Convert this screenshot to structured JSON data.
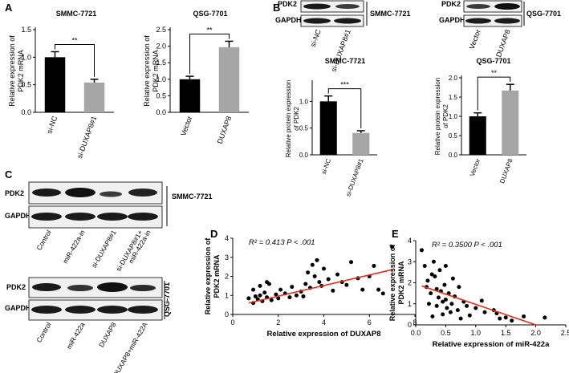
{
  "panels": {
    "A": "A",
    "B": "B",
    "C": "C",
    "D": "D",
    "E": "E"
  },
  "colors": {
    "dark_bar": "#000000",
    "light_bar": "#a6a6a6",
    "regression": "#e0301e",
    "blot_band": "#1a1a1a"
  },
  "chart_data": [
    {
      "id": "A1",
      "type": "bar",
      "title": "SMMC-7721",
      "ylabel": [
        "Relative expression of",
        "PDK2 mRNA"
      ],
      "categories": [
        "si-NC",
        "si-DUXAP8#1"
      ],
      "values": [
        1.0,
        0.54
      ],
      "errors": [
        0.1,
        0.06
      ],
      "ylim": [
        0,
        1.5
      ],
      "yticks": [
        "0.0",
        "0.5",
        "1.0",
        "1.5"
      ],
      "significance": "**"
    },
    {
      "id": "A2",
      "type": "bar",
      "title": "QSG-7701",
      "ylabel": [
        "Relative expression of",
        "PDK2 mRNA"
      ],
      "categories": [
        "Vector",
        "DUXAP8"
      ],
      "values": [
        1.0,
        1.97
      ],
      "errors": [
        0.09,
        0.18
      ],
      "ylim": [
        0,
        2.5
      ],
      "yticks": [
        "0.0",
        "0.5",
        "1.0",
        "1.5",
        "2.0",
        "2.5"
      ],
      "significance": "**"
    },
    {
      "id": "B1",
      "type": "bar",
      "title": "SMMC-7721",
      "ylabel": [
        "Relative protein expression",
        "of PDK2"
      ],
      "categories": [
        "si-NC",
        "si-DUXAP8#1"
      ],
      "values": [
        1.0,
        0.41
      ],
      "errors": [
        0.1,
        0.04
      ],
      "ylim": [
        0,
        1.35
      ],
      "yticks": [
        "0.0",
        "0.5",
        "1.0"
      ],
      "significance": "***"
    },
    {
      "id": "B2",
      "type": "bar",
      "title": "QSG-7701",
      "ylabel": [
        "Relative protein expression",
        "of PDK2"
      ],
      "categories": [
        "Vector",
        "DUXAP8"
      ],
      "values": [
        1.0,
        1.67
      ],
      "errors": [
        0.09,
        0.16
      ],
      "ylim": [
        0,
        2.0
      ],
      "yticks": [
        "0.0",
        "0.5",
        "1.0",
        "1.5",
        "2.0"
      ],
      "significance": "**"
    },
    {
      "id": "D",
      "type": "scatter",
      "ylabel": [
        "Relative expression of",
        "PDK2 mRNA"
      ],
      "xlabel": "Relative expression of DUXAP8",
      "annotation": "R² = 0.413 P < .001",
      "xlim": [
        0,
        8
      ],
      "ylim": [
        0,
        4
      ],
      "xticks": [
        "0",
        "2",
        "4",
        "6",
        "8"
      ],
      "yticks": [
        "0",
        "1",
        "2",
        "3",
        "4"
      ],
      "fit": {
        "x": [
          0.7,
          7.0
        ],
        "y": [
          0.6,
          2.35
        ]
      },
      "points": [
        [
          0.7,
          0.85
        ],
        [
          0.9,
          0.6
        ],
        [
          1.0,
          0.95
        ],
        [
          1.1,
          0.8
        ],
        [
          1.2,
          1.0
        ],
        [
          1.3,
          0.7
        ],
        [
          1.4,
          1.15
        ],
        [
          1.5,
          0.9
        ],
        [
          1.2,
          1.5
        ],
        [
          1.6,
          1.6
        ],
        [
          1.7,
          0.75
        ],
        [
          1.9,
          1.05
        ],
        [
          2.0,
          0.85
        ],
        [
          2.1,
          1.3
        ],
        [
          2.3,
          1.1
        ],
        [
          2.5,
          0.9
        ],
        [
          2.6,
          1.45
        ],
        [
          2.8,
          1.0
        ],
        [
          3.0,
          1.2
        ],
        [
          3.1,
          0.95
        ],
        [
          3.2,
          1.6
        ],
        [
          3.3,
          2.2
        ],
        [
          3.4,
          1.4
        ],
        [
          3.5,
          2.6
        ],
        [
          3.6,
          2.0
        ],
        [
          3.7,
          2.85
        ],
        [
          3.8,
          1.7
        ],
        [
          3.9,
          1.5
        ],
        [
          4.0,
          2.4
        ],
        [
          4.2,
          1.85
        ],
        [
          4.4,
          1.25
        ],
        [
          4.6,
          2.1
        ],
        [
          4.8,
          1.7
        ],
        [
          5.0,
          1.55
        ],
        [
          5.2,
          2.75
        ],
        [
          5.5,
          1.9
        ],
        [
          5.7,
          1.3
        ],
        [
          6.0,
          2.0
        ],
        [
          6.2,
          2.55
        ],
        [
          6.4,
          1.3
        ],
        [
          6.6,
          1.1
        ],
        [
          7.0,
          3.55
        ],
        [
          0.9,
          1.3
        ],
        [
          1.5,
          1.7
        ]
      ]
    },
    {
      "id": "E",
      "type": "scatter",
      "ylabel": [
        "Relative expression of",
        "PDK2 mRNA"
      ],
      "xlabel": "Relative expression of miR-422a",
      "annotation": "R² = 0.3500 P < .001",
      "xlim": [
        0,
        2.5
      ],
      "ylim": [
        0,
        4
      ],
      "xticks": [
        "0.0",
        "0.5",
        "1.0",
        "1.5",
        "2.0",
        "2.5"
      ],
      "yticks": [
        "0",
        "1",
        "2",
        "3",
        "4"
      ],
      "fit": {
        "x": [
          0.1,
          2.0
        ],
        "y": [
          1.85,
          0.0
        ]
      },
      "points": [
        [
          0.1,
          3.55
        ],
        [
          0.15,
          2.8
        ],
        [
          0.2,
          2.1
        ],
        [
          0.22,
          1.0
        ],
        [
          0.25,
          1.5
        ],
        [
          0.28,
          0.4
        ],
        [
          0.3,
          3.0
        ],
        [
          0.32,
          2.3
        ],
        [
          0.35,
          1.7
        ],
        [
          0.35,
          0.9
        ],
        [
          0.38,
          1.3
        ],
        [
          0.4,
          2.6
        ],
        [
          0.42,
          1.6
        ],
        [
          0.45,
          0.5
        ],
        [
          0.48,
          1.9
        ],
        [
          0.5,
          1.2
        ],
        [
          0.5,
          2.8
        ],
        [
          0.52,
          0.8
        ],
        [
          0.55,
          1.5
        ],
        [
          0.58,
          0.6
        ],
        [
          0.6,
          1.0
        ],
        [
          0.62,
          2.2
        ],
        [
          0.65,
          1.35
        ],
        [
          0.7,
          0.7
        ],
        [
          0.72,
          1.8
        ],
        [
          0.75,
          0.3
        ],
        [
          0.8,
          1.1
        ],
        [
          0.85,
          0.9
        ],
        [
          0.9,
          0.45
        ],
        [
          1.0,
          0.8
        ],
        [
          1.1,
          1.15
        ],
        [
          1.15,
          0.6
        ],
        [
          1.3,
          0.7
        ],
        [
          1.35,
          0.55
        ],
        [
          1.4,
          0.3
        ],
        [
          1.5,
          0.35
        ],
        [
          1.6,
          0.2
        ],
        [
          1.8,
          0.4
        ],
        [
          2.15,
          0.35
        ],
        [
          0.18,
          1.8
        ],
        [
          0.27,
          2.4
        ],
        [
          0.45,
          1.1
        ]
      ]
    }
  ],
  "blots": {
    "B_left": {
      "labels": [
        "PDK2",
        "GAPDH"
      ],
      "cell_line": "SMMC-7721",
      "lanes": [
        "si-NC",
        "si-DUXAP8#1"
      ]
    },
    "B_right": {
      "labels": [
        "PDK2",
        "GAPDH"
      ],
      "cell_line": "QSG-7701",
      "lanes": [
        "Vector",
        "DUXAP8"
      ]
    },
    "C_top": {
      "labels": [
        "PDK2",
        "GAPDH"
      ],
      "cell_line": "SMMC-7721",
      "lanes": [
        "Control",
        "miR-422a-in",
        "si-DUXAP8#1",
        "si-DUXAP8#1+",
        "miR-422a-in"
      ]
    },
    "C_bottom": {
      "labels": [
        "PDK2",
        "GAPDH"
      ],
      "cell_line": "QSG-7701",
      "lanes": [
        "Control",
        "miR-422a",
        "DUXAP8",
        "DUXAP8+miR-422A"
      ]
    }
  }
}
